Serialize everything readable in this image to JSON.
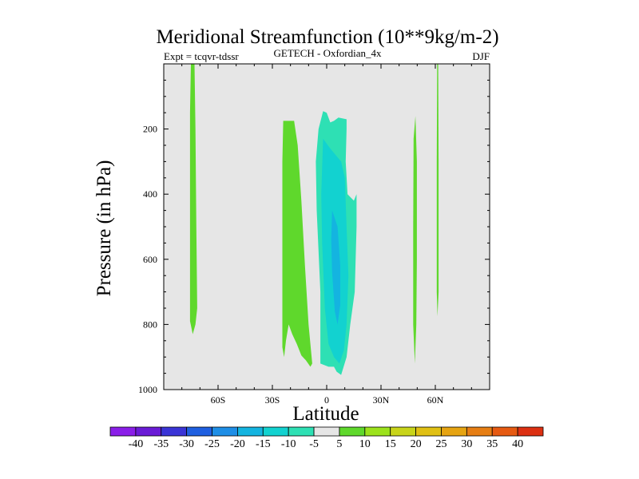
{
  "chart_data": {
    "type": "heatmap",
    "title": "Meridional Streamfunction (10**9kg/m-2)",
    "left_label": "Expt = tcqvr-tdssr",
    "center_label": "GETECH - Oxfordian_4x",
    "right_label": "DJF",
    "xlabel": "Latitude",
    "ylabel": "Pressure (in hPa)",
    "xlim": [
      -90,
      90
    ],
    "ylim": [
      1000,
      0
    ],
    "x_ticks": [
      {
        "value": -60,
        "label": "60S"
      },
      {
        "value": -30,
        "label": "30S"
      },
      {
        "value": 0,
        "label": "0"
      },
      {
        "value": 30,
        "label": "30N"
      },
      {
        "value": 60,
        "label": "60N"
      }
    ],
    "y_ticks": [
      {
        "value": 200,
        "label": "200"
      },
      {
        "value": 400,
        "label": "400"
      },
      {
        "value": 600,
        "label": "600"
      },
      {
        "value": 800,
        "label": "800"
      },
      {
        "value": 1000,
        "label": "1000"
      }
    ],
    "background_color": "#e6e6e6",
    "colorbar": {
      "levels": [
        "-40",
        "-35",
        "-30",
        "-25",
        "-20",
        "-15",
        "-10",
        "-5",
        "5",
        "10",
        "15",
        "20",
        "25",
        "30",
        "35",
        "40"
      ],
      "colors": [
        "#8a1ee8",
        "#6a1bd6",
        "#3a34d6",
        "#1f5fe0",
        "#1e8ee6",
        "#14b4e0",
        "#12d2d0",
        "#2ee0b4",
        "#e6e6e6",
        "#5fd82c",
        "#9ce21c",
        "#c8d41a",
        "#e0c014",
        "#e6a412",
        "#e67e14",
        "#e65a12",
        "#dc3012"
      ]
    },
    "regions": [
      {
        "name": "sh-high-lat-positive",
        "value_range": "5 to 10",
        "color": "#5fd82c",
        "points": [
          [
            -75,
            0
          ],
          [
            -73,
            0
          ],
          [
            -72.5,
            200
          ],
          [
            -72,
            500
          ],
          [
            -71.5,
            750
          ],
          [
            -72.5,
            800
          ],
          [
            -74,
            830
          ],
          [
            -75.5,
            790
          ],
          [
            -75.5,
            500
          ],
          [
            -75.5,
            150
          ]
        ]
      },
      {
        "name": "sh-subtropical-positive",
        "value_range": "5 to 10",
        "color": "#5fd82c",
        "points": [
          [
            -24,
            175
          ],
          [
            -21,
            175
          ],
          [
            -18,
            175
          ],
          [
            -16,
            250
          ],
          [
            -14,
            420
          ],
          [
            -12,
            620
          ],
          [
            -10,
            800
          ],
          [
            -8,
            920
          ],
          [
            -9,
            930
          ],
          [
            -11.5,
            910
          ],
          [
            -14,
            895
          ],
          [
            -16.5,
            860
          ],
          [
            -19,
            830
          ],
          [
            -21,
            800
          ],
          [
            -22.5,
            850
          ],
          [
            -23.5,
            900
          ],
          [
            -24.5,
            870
          ],
          [
            -24.5,
            600
          ],
          [
            -24.5,
            300
          ]
        ]
      },
      {
        "name": "equatorial-negative",
        "value_range": "-10 to -5",
        "color": "#2ee0b4",
        "points": [
          [
            -2,
            145
          ],
          [
            0,
            150
          ],
          [
            2,
            180
          ],
          [
            4,
            175
          ],
          [
            6.5,
            165
          ],
          [
            11,
            170
          ],
          [
            11,
            200
          ],
          [
            10.5,
            300
          ],
          [
            11.5,
            400
          ],
          [
            15,
            420
          ],
          [
            16.5,
            400
          ],
          [
            16.5,
            500
          ],
          [
            15.5,
            700
          ],
          [
            13,
            800
          ],
          [
            11,
            900
          ],
          [
            8,
            955
          ],
          [
            5.5,
            945
          ],
          [
            4,
            930
          ],
          [
            1,
            930
          ],
          [
            -3.5,
            920
          ],
          [
            -3.5,
            700
          ],
          [
            -5.5,
            450
          ],
          [
            -6,
            300
          ],
          [
            -4.5,
            200
          ]
        ]
      },
      {
        "name": "equatorial-core",
        "value_range": "-15 to -10",
        "color": "#12d2d0",
        "points": [
          [
            -2,
            230
          ],
          [
            2,
            260
          ],
          [
            5,
            280
          ],
          [
            8,
            300
          ],
          [
            10,
            350
          ],
          [
            11,
            500
          ],
          [
            12,
            650
          ],
          [
            11,
            800
          ],
          [
            9.5,
            880
          ],
          [
            7,
            920
          ],
          [
            4,
            900
          ],
          [
            1,
            860
          ],
          [
            -1,
            750
          ],
          [
            -2.5,
            550
          ],
          [
            -3,
            400
          ]
        ]
      },
      {
        "name": "equatorial-inner-core",
        "value_range": "-20 to -15",
        "color": "#14b4e0",
        "points": [
          [
            3,
            450
          ],
          [
            6,
            500
          ],
          [
            7.5,
            620
          ],
          [
            7.5,
            740
          ],
          [
            6,
            800
          ],
          [
            4.5,
            760
          ],
          [
            3,
            640
          ],
          [
            2.5,
            540
          ]
        ]
      },
      {
        "name": "nh-midlat-positive",
        "value_range": "5 to 10",
        "color": "#5fd82c",
        "points": [
          [
            48,
            230
          ],
          [
            49,
            160
          ],
          [
            49.8,
            300
          ],
          [
            49.8,
            600
          ],
          [
            49.5,
            800
          ],
          [
            48.7,
            920
          ],
          [
            47.8,
            800
          ],
          [
            47.8,
            500
          ]
        ]
      },
      {
        "name": "nh-high-lat-positive",
        "value_range": "5 to 10",
        "color": "#5fd82c",
        "points": [
          [
            61,
            0
          ],
          [
            61.6,
            0
          ],
          [
            61.8,
            300
          ],
          [
            61.8,
            700
          ],
          [
            61.2,
            775
          ],
          [
            60.8,
            700
          ],
          [
            60.8,
            300
          ]
        ]
      }
    ]
  }
}
